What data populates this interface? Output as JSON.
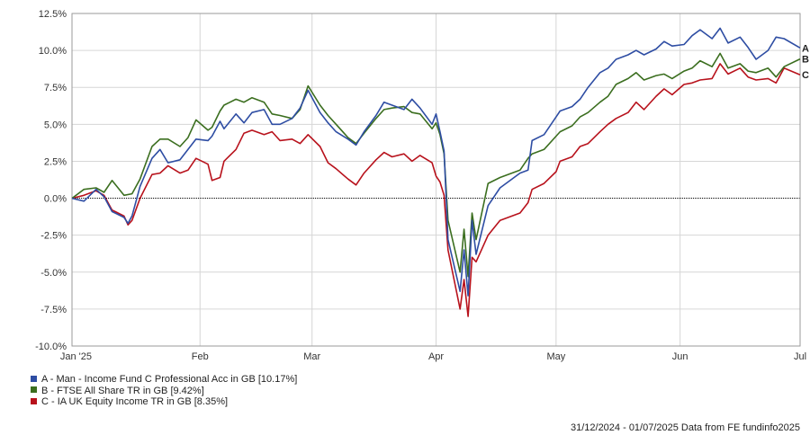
{
  "chart_data": {
    "type": "line",
    "yticks": [
      "12.5%",
      "10.0%",
      "7.5%",
      "5.0%",
      "2.5%",
      "0.0%",
      "-2.5%",
      "-5.0%",
      "-7.5%",
      "-10.0%"
    ],
    "ylim": [
      -10,
      12.5
    ],
    "xlim": [
      "2024-12-31",
      "2025-07-01"
    ],
    "xticks": [
      {
        "label": "Jan '25",
        "date": "2025-01-01"
      },
      {
        "label": "Feb",
        "date": "2025-02-01"
      },
      {
        "label": "Mar",
        "date": "2025-03-01"
      },
      {
        "label": "Apr",
        "date": "2025-04-01"
      },
      {
        "label": "May",
        "date": "2025-05-01"
      },
      {
        "label": "Jun",
        "date": "2025-06-01"
      },
      {
        "label": "Jul",
        "date": "2025-07-01"
      }
    ],
    "grid": true,
    "zero_line": true,
    "series": [
      {
        "id": "A",
        "name": "A - Man - Income Fund C Professional Acc in GB [10.17%]",
        "color": "#2e4da3",
        "points": [
          [
            "2024-12-31",
            0.0
          ],
          [
            "2025-01-03",
            -0.2
          ],
          [
            "2025-01-06",
            0.6
          ],
          [
            "2025-01-08",
            0.1
          ],
          [
            "2025-01-10",
            -0.9
          ],
          [
            "2025-01-13",
            -1.3
          ],
          [
            "2025-01-14",
            -1.7
          ],
          [
            "2025-01-15",
            -1.2
          ],
          [
            "2025-01-17",
            0.8
          ],
          [
            "2025-01-20",
            2.7
          ],
          [
            "2025-01-22",
            3.3
          ],
          [
            "2025-01-24",
            2.4
          ],
          [
            "2025-01-27",
            2.6
          ],
          [
            "2025-01-29",
            3.3
          ],
          [
            "2025-01-31",
            4.0
          ],
          [
            "2025-02-03",
            3.9
          ],
          [
            "2025-02-04",
            4.2
          ],
          [
            "2025-02-06",
            5.2
          ],
          [
            "2025-02-07",
            4.7
          ],
          [
            "2025-02-10",
            5.7
          ],
          [
            "2025-02-12",
            5.1
          ],
          [
            "2025-02-14",
            5.8
          ],
          [
            "2025-02-17",
            6.0
          ],
          [
            "2025-02-19",
            5.0
          ],
          [
            "2025-02-21",
            5.0
          ],
          [
            "2025-02-24",
            5.4
          ],
          [
            "2025-02-26",
            6.1
          ],
          [
            "2025-02-28",
            7.3
          ],
          [
            "2025-03-03",
            5.8
          ],
          [
            "2025-03-05",
            5.1
          ],
          [
            "2025-03-07",
            4.5
          ],
          [
            "2025-03-10",
            4.0
          ],
          [
            "2025-03-12",
            3.6
          ],
          [
            "2025-03-14",
            4.5
          ],
          [
            "2025-03-17",
            5.6
          ],
          [
            "2025-03-19",
            6.5
          ],
          [
            "2025-03-21",
            6.3
          ],
          [
            "2025-03-24",
            6.0
          ],
          [
            "2025-03-26",
            6.7
          ],
          [
            "2025-03-28",
            6.1
          ],
          [
            "2025-03-31",
            5.0
          ],
          [
            "2025-04-01",
            5.7
          ],
          [
            "2025-04-02",
            4.5
          ],
          [
            "2025-04-03",
            3.2
          ],
          [
            "2025-04-04",
            -2.8
          ],
          [
            "2025-04-07",
            -6.3
          ],
          [
            "2025-04-08",
            -3.5
          ],
          [
            "2025-04-09",
            -6.6
          ],
          [
            "2025-04-10",
            -1.5
          ],
          [
            "2025-04-11",
            -3.8
          ],
          [
            "2025-04-14",
            -0.5
          ],
          [
            "2025-04-17",
            0.7
          ],
          [
            "2025-04-22",
            1.7
          ],
          [
            "2025-04-24",
            1.9
          ],
          [
            "2025-04-25",
            3.9
          ],
          [
            "2025-04-28",
            4.3
          ],
          [
            "2025-05-01",
            5.5
          ],
          [
            "2025-05-02",
            5.9
          ],
          [
            "2025-05-05",
            6.2
          ],
          [
            "2025-05-07",
            6.7
          ],
          [
            "2025-05-09",
            7.5
          ],
          [
            "2025-05-12",
            8.5
          ],
          [
            "2025-05-14",
            8.8
          ],
          [
            "2025-05-16",
            9.4
          ],
          [
            "2025-05-19",
            9.7
          ],
          [
            "2025-05-21",
            10.0
          ],
          [
            "2025-05-23",
            9.7
          ],
          [
            "2025-05-26",
            10.1
          ],
          [
            "2025-05-28",
            10.6
          ],
          [
            "2025-05-30",
            10.3
          ],
          [
            "2025-06-02",
            10.4
          ],
          [
            "2025-06-04",
            11.0
          ],
          [
            "2025-06-06",
            11.4
          ],
          [
            "2025-06-09",
            10.8
          ],
          [
            "2025-06-11",
            11.5
          ],
          [
            "2025-06-13",
            10.5
          ],
          [
            "2025-06-16",
            10.9
          ],
          [
            "2025-06-18",
            10.2
          ],
          [
            "2025-06-20",
            9.4
          ],
          [
            "2025-06-23",
            10.0
          ],
          [
            "2025-06-25",
            10.9
          ],
          [
            "2025-06-27",
            10.8
          ],
          [
            "2025-07-01",
            10.17
          ]
        ]
      },
      {
        "id": "B",
        "name": "B - FTSE All Share TR in GB [9.42%]",
        "color": "#3b6e1f",
        "points": [
          [
            "2024-12-31",
            0.0
          ],
          [
            "2025-01-03",
            0.6
          ],
          [
            "2025-01-06",
            0.7
          ],
          [
            "2025-01-08",
            0.4
          ],
          [
            "2025-01-10",
            1.2
          ],
          [
            "2025-01-13",
            0.2
          ],
          [
            "2025-01-15",
            0.3
          ],
          [
            "2025-01-17",
            1.3
          ],
          [
            "2025-01-20",
            3.5
          ],
          [
            "2025-01-22",
            4.0
          ],
          [
            "2025-01-24",
            4.0
          ],
          [
            "2025-01-27",
            3.5
          ],
          [
            "2025-01-29",
            4.1
          ],
          [
            "2025-01-31",
            5.3
          ],
          [
            "2025-02-03",
            4.6
          ],
          [
            "2025-02-04",
            4.8
          ],
          [
            "2025-02-06",
            5.9
          ],
          [
            "2025-02-07",
            6.3
          ],
          [
            "2025-02-10",
            6.7
          ],
          [
            "2025-02-12",
            6.5
          ],
          [
            "2025-02-14",
            6.8
          ],
          [
            "2025-02-17",
            6.5
          ],
          [
            "2025-02-19",
            5.7
          ],
          [
            "2025-02-21",
            5.6
          ],
          [
            "2025-02-24",
            5.4
          ],
          [
            "2025-02-26",
            6.0
          ],
          [
            "2025-02-28",
            7.6
          ],
          [
            "2025-03-03",
            6.3
          ],
          [
            "2025-03-05",
            5.6
          ],
          [
            "2025-03-07",
            5.0
          ],
          [
            "2025-03-10",
            4.1
          ],
          [
            "2025-03-12",
            3.7
          ],
          [
            "2025-03-14",
            4.4
          ],
          [
            "2025-03-17",
            5.4
          ],
          [
            "2025-03-19",
            6.0
          ],
          [
            "2025-03-21",
            6.1
          ],
          [
            "2025-03-24",
            6.2
          ],
          [
            "2025-03-26",
            5.8
          ],
          [
            "2025-03-28",
            5.7
          ],
          [
            "2025-03-31",
            4.7
          ],
          [
            "2025-04-01",
            5.1
          ],
          [
            "2025-04-02",
            4.3
          ],
          [
            "2025-04-03",
            3.0
          ],
          [
            "2025-04-04",
            -1.5
          ],
          [
            "2025-04-07",
            -5.0
          ],
          [
            "2025-04-08",
            -2.1
          ],
          [
            "2025-04-09",
            -5.3
          ],
          [
            "2025-04-10",
            -1.0
          ],
          [
            "2025-04-11",
            -2.8
          ],
          [
            "2025-04-14",
            1.0
          ],
          [
            "2025-04-17",
            1.4
          ],
          [
            "2025-04-22",
            1.9
          ],
          [
            "2025-04-24",
            2.7
          ],
          [
            "2025-04-25",
            3.0
          ],
          [
            "2025-04-28",
            3.3
          ],
          [
            "2025-05-01",
            4.2
          ],
          [
            "2025-05-02",
            4.5
          ],
          [
            "2025-05-05",
            4.9
          ],
          [
            "2025-05-07",
            5.5
          ],
          [
            "2025-05-09",
            5.8
          ],
          [
            "2025-05-12",
            6.5
          ],
          [
            "2025-05-14",
            6.9
          ],
          [
            "2025-05-16",
            7.7
          ],
          [
            "2025-05-19",
            8.1
          ],
          [
            "2025-05-21",
            8.5
          ],
          [
            "2025-05-23",
            8.0
          ],
          [
            "2025-05-26",
            8.3
          ],
          [
            "2025-05-28",
            8.4
          ],
          [
            "2025-05-30",
            8.1
          ],
          [
            "2025-06-02",
            8.6
          ],
          [
            "2025-06-04",
            8.8
          ],
          [
            "2025-06-06",
            9.3
          ],
          [
            "2025-06-09",
            8.9
          ],
          [
            "2025-06-11",
            9.8
          ],
          [
            "2025-06-13",
            8.8
          ],
          [
            "2025-06-16",
            9.1
          ],
          [
            "2025-06-18",
            8.6
          ],
          [
            "2025-06-20",
            8.5
          ],
          [
            "2025-06-23",
            8.8
          ],
          [
            "2025-06-25",
            8.2
          ],
          [
            "2025-06-27",
            8.9
          ],
          [
            "2025-07-01",
            9.42
          ]
        ]
      },
      {
        "id": "C",
        "name": "C - IA UK Equity Income TR in GB [8.35%]",
        "color": "#b8121c",
        "points": [
          [
            "2024-12-31",
            0.0
          ],
          [
            "2025-01-03",
            0.2
          ],
          [
            "2025-01-06",
            0.5
          ],
          [
            "2025-01-08",
            0.2
          ],
          [
            "2025-01-10",
            -0.8
          ],
          [
            "2025-01-13",
            -1.2
          ],
          [
            "2025-01-14",
            -1.8
          ],
          [
            "2025-01-15",
            -1.5
          ],
          [
            "2025-01-17",
            0.0
          ],
          [
            "2025-01-20",
            1.6
          ],
          [
            "2025-01-22",
            1.7
          ],
          [
            "2025-01-24",
            2.2
          ],
          [
            "2025-01-27",
            1.7
          ],
          [
            "2025-01-29",
            1.9
          ],
          [
            "2025-01-31",
            2.7
          ],
          [
            "2025-02-03",
            2.3
          ],
          [
            "2025-02-04",
            1.2
          ],
          [
            "2025-02-06",
            1.4
          ],
          [
            "2025-02-07",
            2.5
          ],
          [
            "2025-02-10",
            3.3
          ],
          [
            "2025-02-12",
            4.4
          ],
          [
            "2025-02-14",
            4.6
          ],
          [
            "2025-02-17",
            4.3
          ],
          [
            "2025-02-19",
            4.5
          ],
          [
            "2025-02-21",
            3.9
          ],
          [
            "2025-02-24",
            4.0
          ],
          [
            "2025-02-26",
            3.7
          ],
          [
            "2025-02-28",
            4.3
          ],
          [
            "2025-03-03",
            3.5
          ],
          [
            "2025-03-05",
            2.4
          ],
          [
            "2025-03-07",
            2.0
          ],
          [
            "2025-03-10",
            1.3
          ],
          [
            "2025-03-12",
            0.9
          ],
          [
            "2025-03-14",
            1.7
          ],
          [
            "2025-03-17",
            2.6
          ],
          [
            "2025-03-19",
            3.1
          ],
          [
            "2025-03-21",
            2.8
          ],
          [
            "2025-03-24",
            3.0
          ],
          [
            "2025-03-26",
            2.5
          ],
          [
            "2025-03-28",
            2.9
          ],
          [
            "2025-03-31",
            2.4
          ],
          [
            "2025-04-01",
            1.5
          ],
          [
            "2025-04-02",
            1.1
          ],
          [
            "2025-04-03",
            0.2
          ],
          [
            "2025-04-04",
            -3.5
          ],
          [
            "2025-04-07",
            -7.5
          ],
          [
            "2025-04-08",
            -5.5
          ],
          [
            "2025-04-09",
            -8.0
          ],
          [
            "2025-04-10",
            -4.0
          ],
          [
            "2025-04-11",
            -4.3
          ],
          [
            "2025-04-14",
            -2.5
          ],
          [
            "2025-04-17",
            -1.5
          ],
          [
            "2025-04-22",
            -1.0
          ],
          [
            "2025-04-24",
            -0.3
          ],
          [
            "2025-04-25",
            0.6
          ],
          [
            "2025-04-28",
            1.0
          ],
          [
            "2025-05-01",
            1.8
          ],
          [
            "2025-05-02",
            2.5
          ],
          [
            "2025-05-05",
            2.8
          ],
          [
            "2025-05-07",
            3.5
          ],
          [
            "2025-05-09",
            3.7
          ],
          [
            "2025-05-12",
            4.5
          ],
          [
            "2025-05-14",
            5.0
          ],
          [
            "2025-05-16",
            5.4
          ],
          [
            "2025-05-19",
            5.8
          ],
          [
            "2025-05-21",
            6.5
          ],
          [
            "2025-05-23",
            6.0
          ],
          [
            "2025-05-26",
            6.9
          ],
          [
            "2025-05-28",
            7.4
          ],
          [
            "2025-05-30",
            7.0
          ],
          [
            "2025-06-02",
            7.7
          ],
          [
            "2025-06-04",
            7.8
          ],
          [
            "2025-06-06",
            8.0
          ],
          [
            "2025-06-09",
            8.1
          ],
          [
            "2025-06-11",
            9.1
          ],
          [
            "2025-06-13",
            8.4
          ],
          [
            "2025-06-16",
            8.8
          ],
          [
            "2025-06-18",
            8.2
          ],
          [
            "2025-06-20",
            8.0
          ],
          [
            "2025-06-23",
            8.1
          ],
          [
            "2025-06-25",
            7.8
          ],
          [
            "2025-06-27",
            8.8
          ],
          [
            "2025-07-01",
            8.35
          ]
        ]
      }
    ]
  },
  "footer": "31/12/2024 - 01/07/2025 Data from FE fundinfo2025"
}
